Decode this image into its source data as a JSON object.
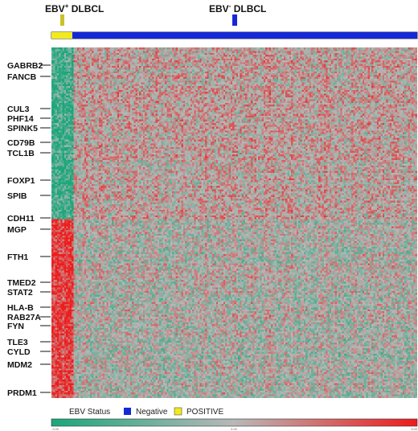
{
  "chart_data": {
    "type": "heatmap",
    "groups": [
      {
        "name_main": "EBV",
        "name_sup": "+",
        "name_tail": " DLBCL",
        "status": "POSITIVE",
        "color": "#f1ea1e",
        "marker_color": "#c8c22a",
        "fraction": 0.058
      },
      {
        "name_main": "EBV",
        "name_sup": "-",
        "name_tail": " DLBCL",
        "status": "Negative",
        "color": "#1528d6",
        "marker_color": "#1528d6",
        "fraction": 0.942
      }
    ],
    "genes": [
      "GABRB2",
      "FANCB",
      "CUL3",
      "PHF14",
      "SPINK5",
      "CD79B",
      "TCL1B",
      "FOXP1",
      "SPIB",
      "CDH11",
      "MGP",
      "FTH1",
      "TMED2",
      "STAT2",
      "HLA-B",
      "RAB27A",
      "FYN",
      "TLE3",
      "CYLD",
      "MDM2",
      "PRDM1"
    ],
    "upper_block_fraction": 0.49,
    "color_scale": {
      "low": "#1aa77a",
      "mid": "#b8b8b8",
      "high": "#ee1c1c",
      "ticks": [
        "-3.00",
        "0.00",
        "3.00"
      ]
    },
    "legend": {
      "title": "EBV Status",
      "items": [
        {
          "label": "Negative",
          "color": "#1528d6"
        },
        {
          "label": "POSITIVE",
          "color": "#f1ea1e"
        }
      ]
    }
  }
}
